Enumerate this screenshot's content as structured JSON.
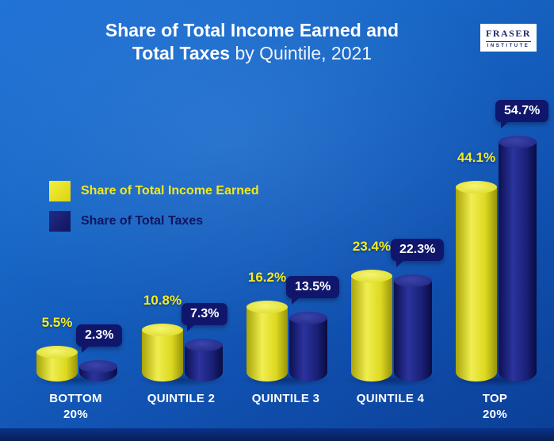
{
  "title": {
    "line1": "Share of Total Income Earned and",
    "line2_bold": "Total Taxes",
    "line2_rest": " by Quintile, 2021"
  },
  "logo": {
    "line1": "FRASER",
    "line2": "INSTITUTE"
  },
  "legend": [
    {
      "label": "Share of Total Income Earned",
      "color": "#f2e81c"
    },
    {
      "label": "Share of Total Taxes",
      "color": "#10155e"
    }
  ],
  "colors": {
    "background_top": "#2173d6",
    "background_bottom": "#0b3f97",
    "income_bar": "#ddd820",
    "taxes_bar": "#1a2178",
    "badge_bg": "#10166b",
    "income_label": "#f5ec1e",
    "title_text": "#ffffff"
  },
  "chart_data": {
    "type": "bar",
    "title": "Share of Total Income Earned and Total Taxes by Quintile, 2021",
    "categories": [
      "BOTTOM 20%",
      "QUINTILE 2",
      "QUINTILE 3",
      "QUINTILE 4",
      "TOP 20%"
    ],
    "category_lines": [
      [
        "BOTTOM",
        "20%"
      ],
      [
        "QUINTILE 2"
      ],
      [
        "QUINTILE 3"
      ],
      [
        "QUINTILE 4"
      ],
      [
        "TOP",
        "20%"
      ]
    ],
    "series": [
      {
        "name": "Share of Total Income Earned",
        "values": [
          5.5,
          10.8,
          16.2,
          23.4,
          44.1
        ],
        "labels": [
          "5.5%",
          "10.8%",
          "16.2%",
          "23.4%",
          "44.1%"
        ]
      },
      {
        "name": "Share of Total Taxes",
        "values": [
          2.3,
          7.3,
          13.5,
          22.3,
          54.7
        ],
        "labels": [
          "2.3%",
          "7.3%",
          "13.5%",
          "22.3%",
          "54.7%"
        ]
      }
    ],
    "value_suffix": "%",
    "ylim": [
      0,
      60
    ],
    "grid": false,
    "legend_position": "middle-left"
  }
}
